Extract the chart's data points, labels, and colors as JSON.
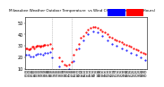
{
  "bg_color": "#ffffff",
  "line1_color": "#ff0000",
  "line2_color": "#0000ff",
  "legend_color1": "#0000ff",
  "legend_color2": "#ff0000",
  "ylim": [
    10,
    55
  ],
  "yticks": [
    10,
    20,
    30,
    40,
    50
  ],
  "vline_positions": [
    0.22,
    0.38
  ],
  "temp_x": [
    0.0,
    0.01,
    0.02,
    0.03,
    0.04,
    0.05,
    0.06,
    0.07,
    0.08,
    0.09,
    0.1,
    0.11,
    0.12,
    0.13,
    0.14,
    0.15,
    0.16,
    0.18,
    0.2,
    0.22,
    0.28,
    0.3,
    0.32,
    0.34,
    0.36,
    0.38,
    0.4,
    0.42,
    0.44,
    0.46,
    0.48,
    0.5,
    0.52,
    0.54,
    0.56,
    0.58,
    0.6,
    0.62,
    0.64,
    0.66,
    0.68,
    0.7,
    0.72,
    0.74,
    0.76,
    0.78,
    0.8,
    0.82,
    0.84,
    0.86,
    0.88,
    0.9,
    0.92,
    0.94,
    0.96,
    0.98,
    1.0
  ],
  "temp_y": [
    28,
    28,
    27,
    27,
    28,
    29,
    29,
    28,
    29,
    30,
    30,
    30,
    29,
    30,
    30,
    31,
    31,
    31,
    32,
    28,
    20,
    17,
    14,
    13,
    14,
    16,
    22,
    27,
    32,
    37,
    39,
    42,
    44,
    46,
    47,
    47,
    46,
    44,
    43,
    42,
    40,
    38,
    37,
    36,
    35,
    34,
    33,
    32,
    31,
    30,
    29,
    28,
    27,
    26,
    25,
    24,
    23
  ],
  "wind_x": [
    0.0,
    0.02,
    0.04,
    0.06,
    0.08,
    0.1,
    0.12,
    0.14,
    0.16,
    0.18,
    0.2,
    0.22,
    0.28,
    0.32,
    0.36,
    0.4,
    0.44,
    0.48,
    0.52,
    0.56,
    0.6,
    0.64,
    0.68,
    0.72,
    0.76,
    0.8,
    0.84,
    0.88,
    0.92,
    0.96,
    1.0
  ],
  "wind_y": [
    22,
    22,
    21,
    21,
    22,
    23,
    23,
    22,
    24,
    24,
    25,
    20,
    12,
    9,
    10,
    17,
    28,
    35,
    40,
    43,
    42,
    39,
    35,
    32,
    30,
    28,
    26,
    24,
    22,
    20,
    18
  ],
  "num_xticks": 48,
  "xlabel_fontsize": 2.5,
  "ylabel_fontsize": 3.5,
  "title_fontsize": 3.0,
  "title_text": "Milwaukee Weather Outdoor Temperature  vs Wind Chill  per Minute  (24 Hours)"
}
